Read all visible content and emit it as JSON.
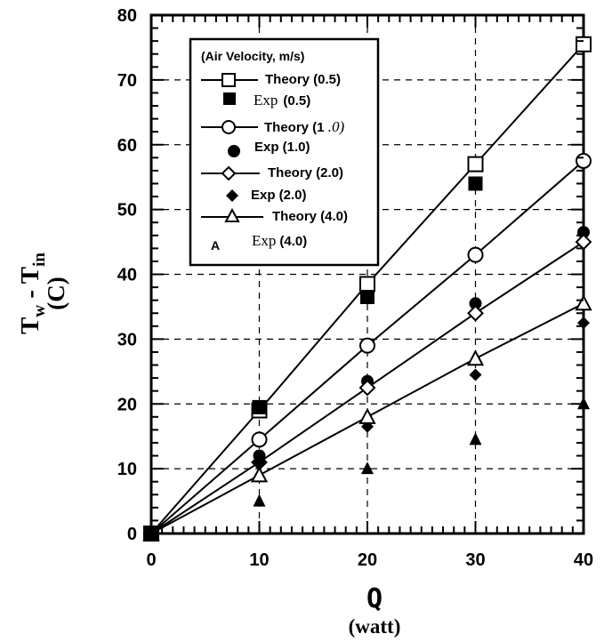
{
  "chart_data": {
    "type": "line",
    "xlabel": "Q",
    "xlabel_unit": "(watt)",
    "ylabel": "Tw - Tin",
    "ylabel_main": "T",
    "ylabel_sub1": "w",
    "ylabel_mid": " - T",
    "ylabel_sub2": "in",
    "ylabel_unit": "(C)",
    "xlim": [
      0,
      40
    ],
    "ylim": [
      0,
      80
    ],
    "xticks": [
      0,
      10,
      20,
      30,
      40
    ],
    "yticks": [
      0,
      10,
      20,
      30,
      40,
      50,
      60,
      70,
      80
    ],
    "xtick_labels": [
      "0",
      "10",
      "20",
      "30",
      "40"
    ],
    "ytick_labels": [
      "0",
      "10",
      "20",
      "30",
      "40",
      "50",
      "60",
      "70",
      "80"
    ],
    "grid": true,
    "legend_position": "top-left",
    "legend_title": "(Air Velocity, m/s)",
    "series": [
      {
        "name": "Theory (0.5)",
        "kind": "line",
        "marker": "square-open",
        "x": [
          0,
          10,
          20,
          30,
          40
        ],
        "y": [
          0,
          19,
          38.5,
          57,
          75.5
        ]
      },
      {
        "name": "Exp (0.5)",
        "kind": "points",
        "marker": "square-filled",
        "x": [
          0,
          10,
          20,
          30
        ],
        "y": [
          0,
          19.5,
          36.5,
          54
        ]
      },
      {
        "name": "Theory (1 .0)",
        "kind": "line",
        "marker": "circle-open",
        "x": [
          0,
          10,
          20,
          30,
          40
        ],
        "y": [
          0,
          14.5,
          29,
          43,
          57.5
        ]
      },
      {
        "name": "Exp (1.0)",
        "kind": "points",
        "marker": "circle-filled",
        "x": [
          0,
          10,
          20,
          30,
          40
        ],
        "y": [
          0,
          12,
          23.5,
          35.5,
          46.5
        ]
      },
      {
        "name": "Theory (2.0)",
        "kind": "line",
        "marker": "diamond-open",
        "x": [
          0,
          10,
          20,
          30,
          40
        ],
        "y": [
          0,
          11,
          22.5,
          34,
          45
        ]
      },
      {
        "name": "Exp (2.0)",
        "kind": "points",
        "marker": "diamond-filled",
        "x": [
          0,
          10,
          20,
          30,
          40
        ],
        "y": [
          0,
          11,
          16.5,
          24.5,
          32.5
        ]
      },
      {
        "name": "Theory (4.0)",
        "kind": "line",
        "marker": "triangle-open",
        "x": [
          0,
          10,
          20,
          30,
          40
        ],
        "y": [
          0,
          9,
          18,
          27,
          35.5
        ]
      },
      {
        "name": "Exp (4.0)",
        "kind": "points",
        "marker": "triangle-filled",
        "x": [
          0,
          10,
          20,
          30,
          40
        ],
        "y": [
          0,
          5,
          10,
          14.5,
          20
        ]
      }
    ]
  },
  "legend": {
    "title": "(Air Velocity, m/s)",
    "items": [
      {
        "label": "Theory (0.5)",
        "marker": "square-open",
        "line": true
      },
      {
        "label_main": "Exp",
        "label_paren": "(0.5)",
        "marker": "square-filled",
        "line": false
      },
      {
        "label_main": "Theory (1",
        "label_tail": " .0)",
        "marker": "circle-open",
        "line": true
      },
      {
        "label": "Exp (1.0)",
        "marker": "circle-filled",
        "line": false
      },
      {
        "label": "Theory (2.0)",
        "marker": "diamond-open",
        "line": true
      },
      {
        "label": "Exp (2.0)",
        "marker": "diamond-filled",
        "line": false
      },
      {
        "label": "Theory (4.0)",
        "marker": "triangle-open",
        "line": true
      },
      {
        "label_main": "Exp",
        "label_paren": "(4.0)",
        "marker_text": "A",
        "line": false
      }
    ]
  }
}
